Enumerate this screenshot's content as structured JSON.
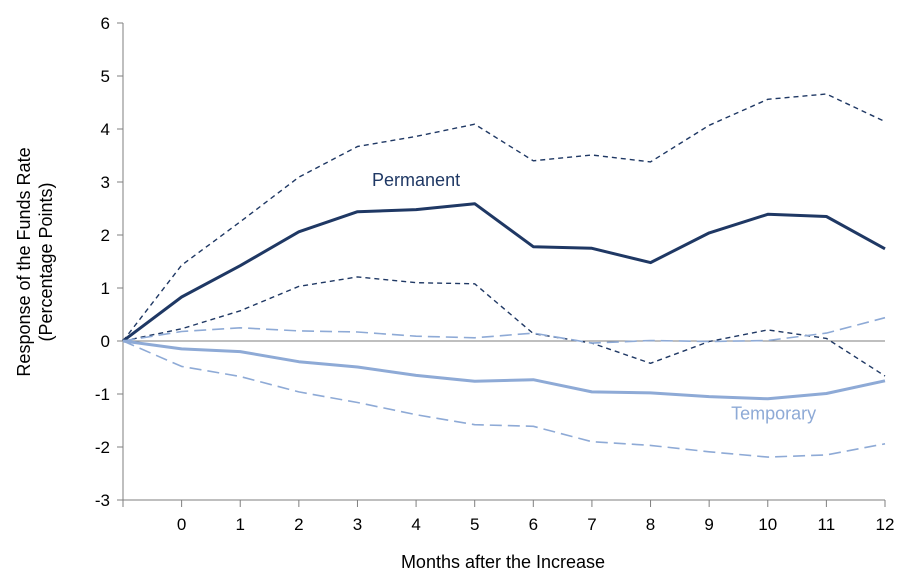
{
  "chart_data": {
    "type": "line",
    "xlabel": "Months after the Increase",
    "ylabel": [
      "Response of the Funds Rate",
      "(Percentage Points)"
    ],
    "ylim": [
      -3,
      6
    ],
    "yticks": [
      -3,
      -2,
      -1,
      0,
      1,
      2,
      3,
      4,
      5,
      6
    ],
    "x": [
      -1,
      0,
      1,
      2,
      3,
      4,
      5,
      6,
      7,
      8,
      9,
      10,
      11,
      12
    ],
    "xtick_labels": [
      "0",
      "1",
      "2",
      "3",
      "4",
      "5",
      "6",
      "7",
      "8",
      "9",
      "10",
      "11",
      "12"
    ],
    "grid": false,
    "series": [
      {
        "name": "Permanent",
        "role": "estimate",
        "color": "#1f3864",
        "values": [
          0,
          0.83,
          1.42,
          2.06,
          2.44,
          2.48,
          2.59,
          1.78,
          1.75,
          1.48,
          2.04,
          2.39,
          2.35,
          1.74
        ]
      },
      {
        "role": "upper band",
        "color": "#1f3864",
        "values": [
          0,
          1.43,
          2.25,
          3.09,
          3.67,
          3.86,
          4.09,
          3.4,
          3.51,
          3.38,
          4.07,
          4.56,
          4.66,
          4.14
        ]
      },
      {
        "role": "lower band",
        "color": "#1f3864",
        "values": [
          0,
          0.23,
          0.57,
          1.03,
          1.21,
          1.1,
          1.08,
          0.14,
          -0.04,
          -0.42,
          -0.01,
          0.21,
          0.05,
          -0.66
        ]
      },
      {
        "name": "Temporary",
        "role": "estimate",
        "color": "#8eaad6",
        "values": [
          0,
          -0.15,
          -0.2,
          -0.39,
          -0.49,
          -0.65,
          -0.76,
          -0.73,
          -0.96,
          -0.98,
          -1.05,
          -1.09,
          -0.99,
          -0.75
        ]
      },
      {
        "role": "upper band",
        "color": "#8eaad6",
        "values": [
          0,
          0.18,
          0.25,
          0.19,
          0.17,
          0.09,
          0.06,
          0.15,
          -0.04,
          0.01,
          -0.01,
          0.01,
          0.15,
          0.44
        ]
      },
      {
        "role": "lower band",
        "color": "#8eaad6",
        "values": [
          0,
          -0.48,
          -0.67,
          -0.96,
          -1.16,
          -1.39,
          -1.58,
          -1.61,
          -1.9,
          -1.97,
          -2.09,
          -2.19,
          -2.15,
          -1.94
        ]
      }
    ],
    "annotations": [
      {
        "text": "Permanent",
        "x": 4.0,
        "y": 2.92,
        "color": "#1f3864"
      },
      {
        "text": "Temporary",
        "x": 10.1,
        "y": -1.48,
        "color": "#8eaad6"
      }
    ]
  }
}
